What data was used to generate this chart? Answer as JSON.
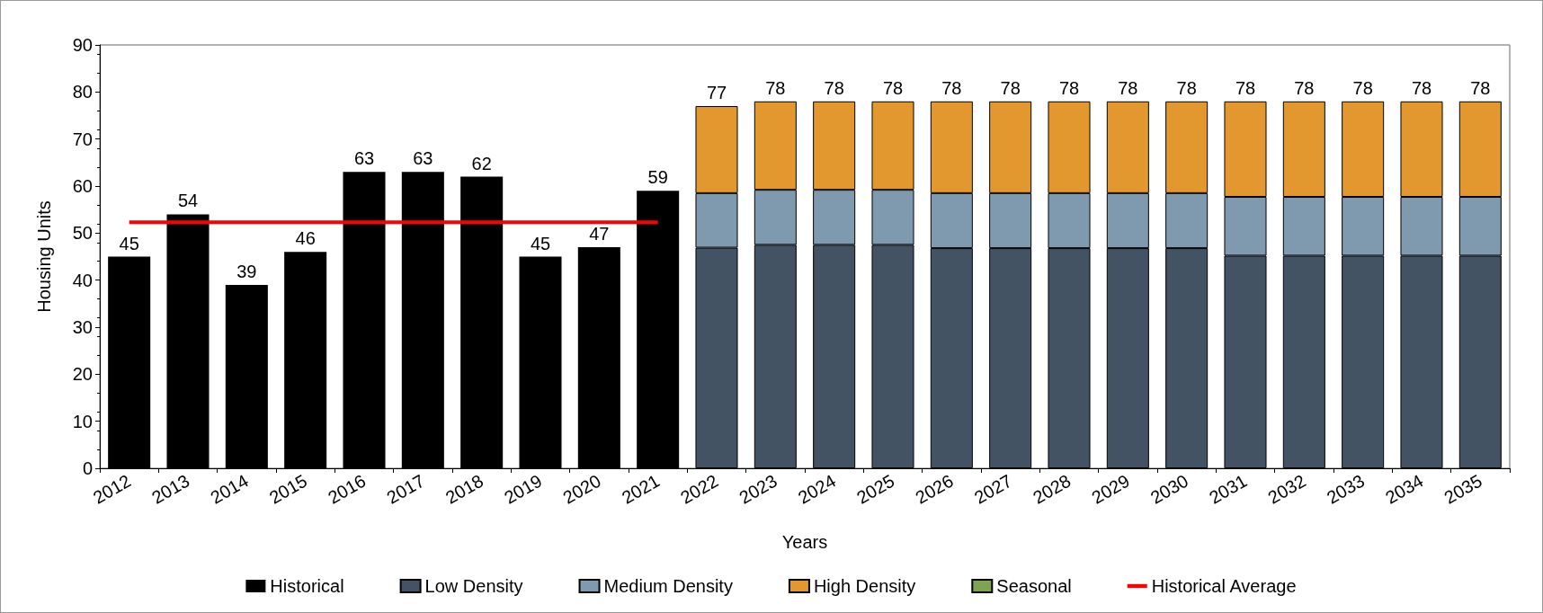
{
  "chart_data": {
    "type": "bar",
    "stacked": true,
    "xlabel": "Years",
    "ylabel": "Housing Units",
    "categories": [
      "2012",
      "2013",
      "2014",
      "2015",
      "2016",
      "2017",
      "2018",
      "2019",
      "2020",
      "2021",
      "2022",
      "2023",
      "2024",
      "2025",
      "2026",
      "2027",
      "2028",
      "2029",
      "2030",
      "2031",
      "2032",
      "2033",
      "2034",
      "2035"
    ],
    "series": [
      {
        "name": "Historical",
        "color": "#000000",
        "values": [
          45,
          54,
          39,
          46,
          63,
          63,
          62,
          45,
          47,
          59,
          null,
          null,
          null,
          null,
          null,
          null,
          null,
          null,
          null,
          null,
          null,
          null,
          null,
          null
        ],
        "value_labels": [
          "45",
          "54",
          "39",
          "46",
          "63",
          "63",
          "62",
          "45",
          "47",
          "59",
          null,
          null,
          null,
          null,
          null,
          null,
          null,
          null,
          null,
          null,
          null,
          null,
          null,
          null
        ]
      },
      {
        "name": "Low Density",
        "color": "#435364",
        "values": [
          null,
          null,
          null,
          null,
          null,
          null,
          null,
          null,
          null,
          null,
          46.9,
          47.5,
          47.5,
          47.5,
          46.8,
          46.8,
          46.8,
          46.8,
          46.8,
          45.2,
          45.2,
          45.2,
          45.2,
          45.2
        ]
      },
      {
        "name": "Medium Density",
        "color": "#7f9aaf",
        "values": [
          null,
          null,
          null,
          null,
          null,
          null,
          null,
          null,
          null,
          null,
          11.6,
          11.7,
          11.7,
          11.7,
          11.7,
          11.7,
          11.7,
          11.7,
          11.7,
          12.5,
          12.5,
          12.5,
          12.5,
          12.5
        ]
      },
      {
        "name": "High Density",
        "color": "#e2982f",
        "values": [
          null,
          null,
          null,
          null,
          null,
          null,
          null,
          null,
          null,
          null,
          18.5,
          18.8,
          18.8,
          18.8,
          19.5,
          19.5,
          19.5,
          19.5,
          19.5,
          20.3,
          20.3,
          20.3,
          20.3,
          20.3
        ]
      },
      {
        "name": "Seasonal",
        "color": "#7fa350",
        "values": [
          null,
          null,
          null,
          null,
          null,
          null,
          null,
          null,
          null,
          null,
          null,
          null,
          null,
          null,
          null,
          null,
          null,
          null,
          null,
          null,
          null,
          null,
          null,
          null
        ]
      },
      {
        "name": "Historical Average",
        "type": "line",
        "color": "#ff0000",
        "marker": "none",
        "values": [
          52.3,
          52.3,
          52.3,
          52.3,
          52.3,
          52.3,
          52.3,
          52.3,
          52.3,
          52.3,
          null,
          null,
          null,
          null,
          null,
          null,
          null,
          null,
          null,
          null,
          null,
          null,
          null,
          null
        ]
      }
    ],
    "totals": [
      null,
      null,
      null,
      null,
      null,
      null,
      null,
      null,
      null,
      null,
      "77",
      "78",
      "78",
      "78",
      "78",
      "78",
      "78",
      "78",
      "78",
      "78",
      "78",
      "78",
      "78",
      "78"
    ],
    "ylim": [
      0,
      90
    ],
    "yticks": [
      0,
      10,
      20,
      30,
      40,
      50,
      60,
      70,
      80,
      90
    ],
    "grid": false,
    "legend": "bottom"
  }
}
